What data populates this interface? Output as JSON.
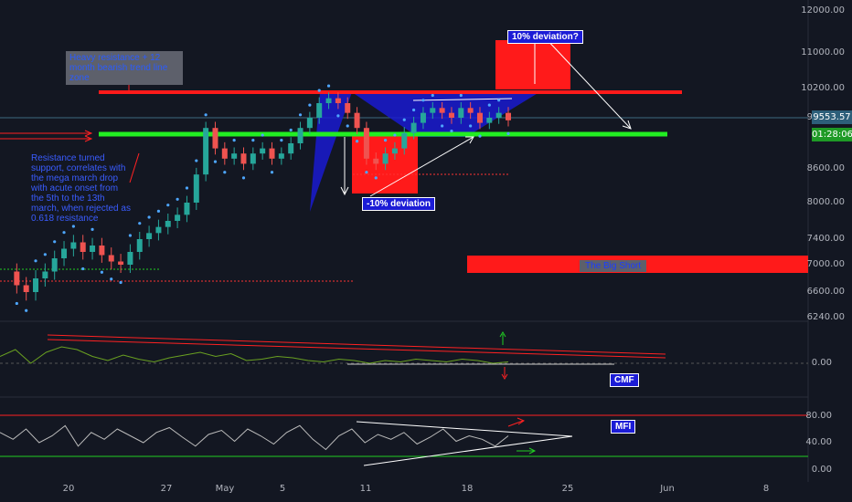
{
  "price_axis_ticks": [
    "12000.00",
    "11000.00",
    "10200.00",
    "9600.00",
    "8600.00",
    "8000.00",
    "7400.00",
    "7000.00",
    "6600.00",
    "6240.00"
  ],
  "current_price": "9553.57",
  "countdown": "01:28:06",
  "cmf_ticks": [
    "0.00"
  ],
  "mfi_ticks": [
    "80.00",
    "40.00",
    "0.00"
  ],
  "time_axis": [
    "20",
    "27",
    "May",
    "5",
    "11",
    "18",
    "25",
    "Jun",
    "8"
  ],
  "annotations": {
    "heavy_resistance": "Heavy resistance + 12 month bearish trend line zone",
    "resistance_support": "Resistance turned support, correlates with the mega march drop with acute onset from the 5th to the 13th march, when rejected as 0.618 resistance",
    "deviation_up": "10% deviation?",
    "deviation_down": "-10% deviation",
    "big_short": "The Big Short",
    "cmf": "CMF",
    "mfi": "MFI"
  },
  "colors": {
    "background": "#131722",
    "resistance": "#ff1a1a",
    "support": "#22ee22",
    "up_candle": "#26a69a",
    "psar": "#4da6ff",
    "cmf_line": "#6aa121",
    "mfi_line": "#bbbbbb"
  },
  "chart_data": [
    {
      "type": "candlestick",
      "title": "",
      "ylim": [
        6240,
        12000
      ],
      "y_ticks": [
        12000,
        11000,
        10200,
        9600,
        8600,
        8000,
        7400,
        7000,
        6600,
        6240
      ],
      "x_ticks": [
        "20",
        "27",
        "May",
        "5",
        "11",
        "18",
        "25",
        "Jun",
        "8"
      ],
      "current_price": 9553.57,
      "horizontal_levels": [
        {
          "name": "resistance",
          "value": 10150
        },
        {
          "name": "support",
          "value": 9350
        }
      ],
      "price_path": [
        6900,
        6700,
        6600,
        6800,
        6900,
        7100,
        7250,
        7350,
        7200,
        7300,
        7150,
        7050,
        7000,
        7200,
        7400,
        7500,
        7600,
        7700,
        7800,
        8000,
        8500,
        9400,
        9000,
        8800,
        8900,
        8700,
        8900,
        9000,
        8800,
        8900,
        9100,
        9400,
        9600,
        9900,
        10000,
        9900,
        9700,
        9400,
        8800,
        8700,
        8900,
        9000,
        9300,
        9500,
        9700,
        9800,
        9700,
        9600,
        9800,
        9700,
        9500,
        9600,
        9700,
        9550
      ]
    },
    {
      "type": "line",
      "title": "CMF",
      "y_ticks": [
        0.0
      ],
      "values": [
        0.05,
        0.1,
        0.0,
        0.08,
        0.12,
        0.1,
        0.05,
        0.02,
        0.06,
        0.03,
        0.01,
        0.04,
        0.06,
        0.08,
        0.05,
        0.07,
        0.02,
        0.03,
        0.05,
        0.04,
        0.02,
        0.01,
        0.03,
        0.02,
        0.0,
        0.02,
        0.01,
        0.03,
        0.02,
        0.01,
        0.03,
        0.02,
        0.0,
        0.01
      ]
    },
    {
      "type": "line",
      "title": "MFI",
      "y_ticks": [
        80,
        40,
        0
      ],
      "ylim": [
        0,
        100
      ],
      "values": [
        55,
        45,
        60,
        40,
        50,
        65,
        35,
        55,
        45,
        60,
        50,
        40,
        55,
        62,
        48,
        35,
        52,
        58,
        42,
        60,
        50,
        38,
        55,
        65,
        45,
        30,
        50,
        60,
        40,
        52,
        45,
        55,
        38,
        48,
        60,
        42,
        50,
        45,
        35,
        50
      ]
    }
  ]
}
